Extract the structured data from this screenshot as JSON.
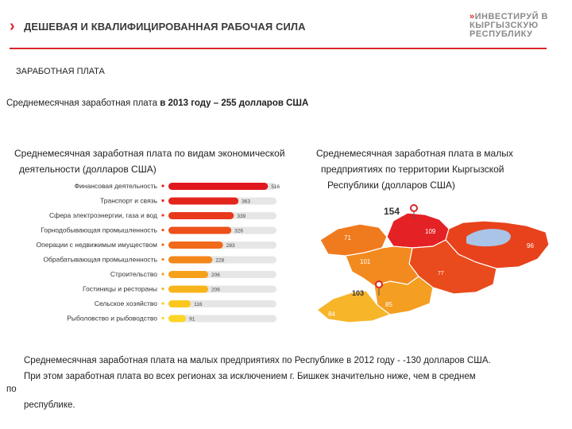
{
  "header": {
    "title": "ДЕШЕВАЯ И КВАЛИФИЦИРОВАННАЯ РАБОЧАЯ СИЛА",
    "logo_lines": [
      "ИНВЕСТИРУЙ В",
      "КЫРГЫЗСКУЮ",
      "РЕСПУБЛИКУ"
    ]
  },
  "section_title": "ЗАРАБОТНАЯ ПЛАТА",
  "summary": {
    "prefix": "Среднемесячная заработная плата ",
    "highlight": "в 2013 году – 255 долларов США"
  },
  "bar_heading": [
    "Среднемесячная заработная плата по видам экономической",
    "деятельности (долларов США)"
  ],
  "map_heading": [
    "Среднемесячная заработная плата в малых",
    "предприятиях по территории Кыргызской",
    "Республики (долларов США)"
  ],
  "chart_data": [
    {
      "type": "bar",
      "orientation": "horizontal",
      "title": "Среднемесячная заработная плата по видам экономической деятельности (долларов США)",
      "categories": [
        "Финансовая деятельность",
        "Транспорт и связь",
        "Сфера электроэнергии, газа и вод",
        "Горнодобывающая промышленность",
        "Операции с недвижимым имуществом",
        "Обрабатывающая промышленность",
        "Строительство",
        "Гостиницы и рестораны",
        "Сельское хозяйство",
        "Рыболовство и рыбоводство"
      ],
      "values": [
        516,
        363,
        339,
        326,
        283,
        228,
        206,
        206,
        116,
        91
      ],
      "xlim": [
        0,
        560
      ],
      "colors": [
        "#e0181e",
        "#e4251c",
        "#e8391b",
        "#ec511b",
        "#f06a1a",
        "#f3871a",
        "#f6a01a",
        "#f8b41b",
        "#fbc71f",
        "#fdd526"
      ],
      "track_color": "#e6e6e6",
      "grid": false
    },
    {
      "type": "choropleth",
      "title": "Среднемесячная заработная плата в малых предприятиях по территории Кыргызской Республики (долларов США)",
      "regions": [
        {
          "name": "Бишкек",
          "value": 154
        },
        {
          "name": "Чуйская область",
          "value": 109
        },
        {
          "name": "Таласская область",
          "value": 71
        },
        {
          "name": "Иссык-Кульская область",
          "value": 96
        },
        {
          "name": "Нарынская область",
          "value": 77
        },
        {
          "name": "Джалал-Абадская область",
          "value": 101
        },
        {
          "name": "Ош",
          "value": 103
        },
        {
          "name": "Ошская область",
          "value": 85
        },
        {
          "name": "Баткенская область",
          "value": 84
        }
      ],
      "value_labels": [
        "154",
        "109",
        "71",
        "96",
        "77",
        "101",
        "103",
        "85",
        "84"
      ]
    }
  ],
  "bottom": {
    "line1": "Среднемесячная заработная плата на малых предприятиях по Республике в 2012 году - -130 долларов США.",
    "line2": "При этом заработная плата во всех регионах за  исключением г. Бишкек значительно ниже, чем в среднем",
    "line3": "по",
    "line4": "республике."
  }
}
